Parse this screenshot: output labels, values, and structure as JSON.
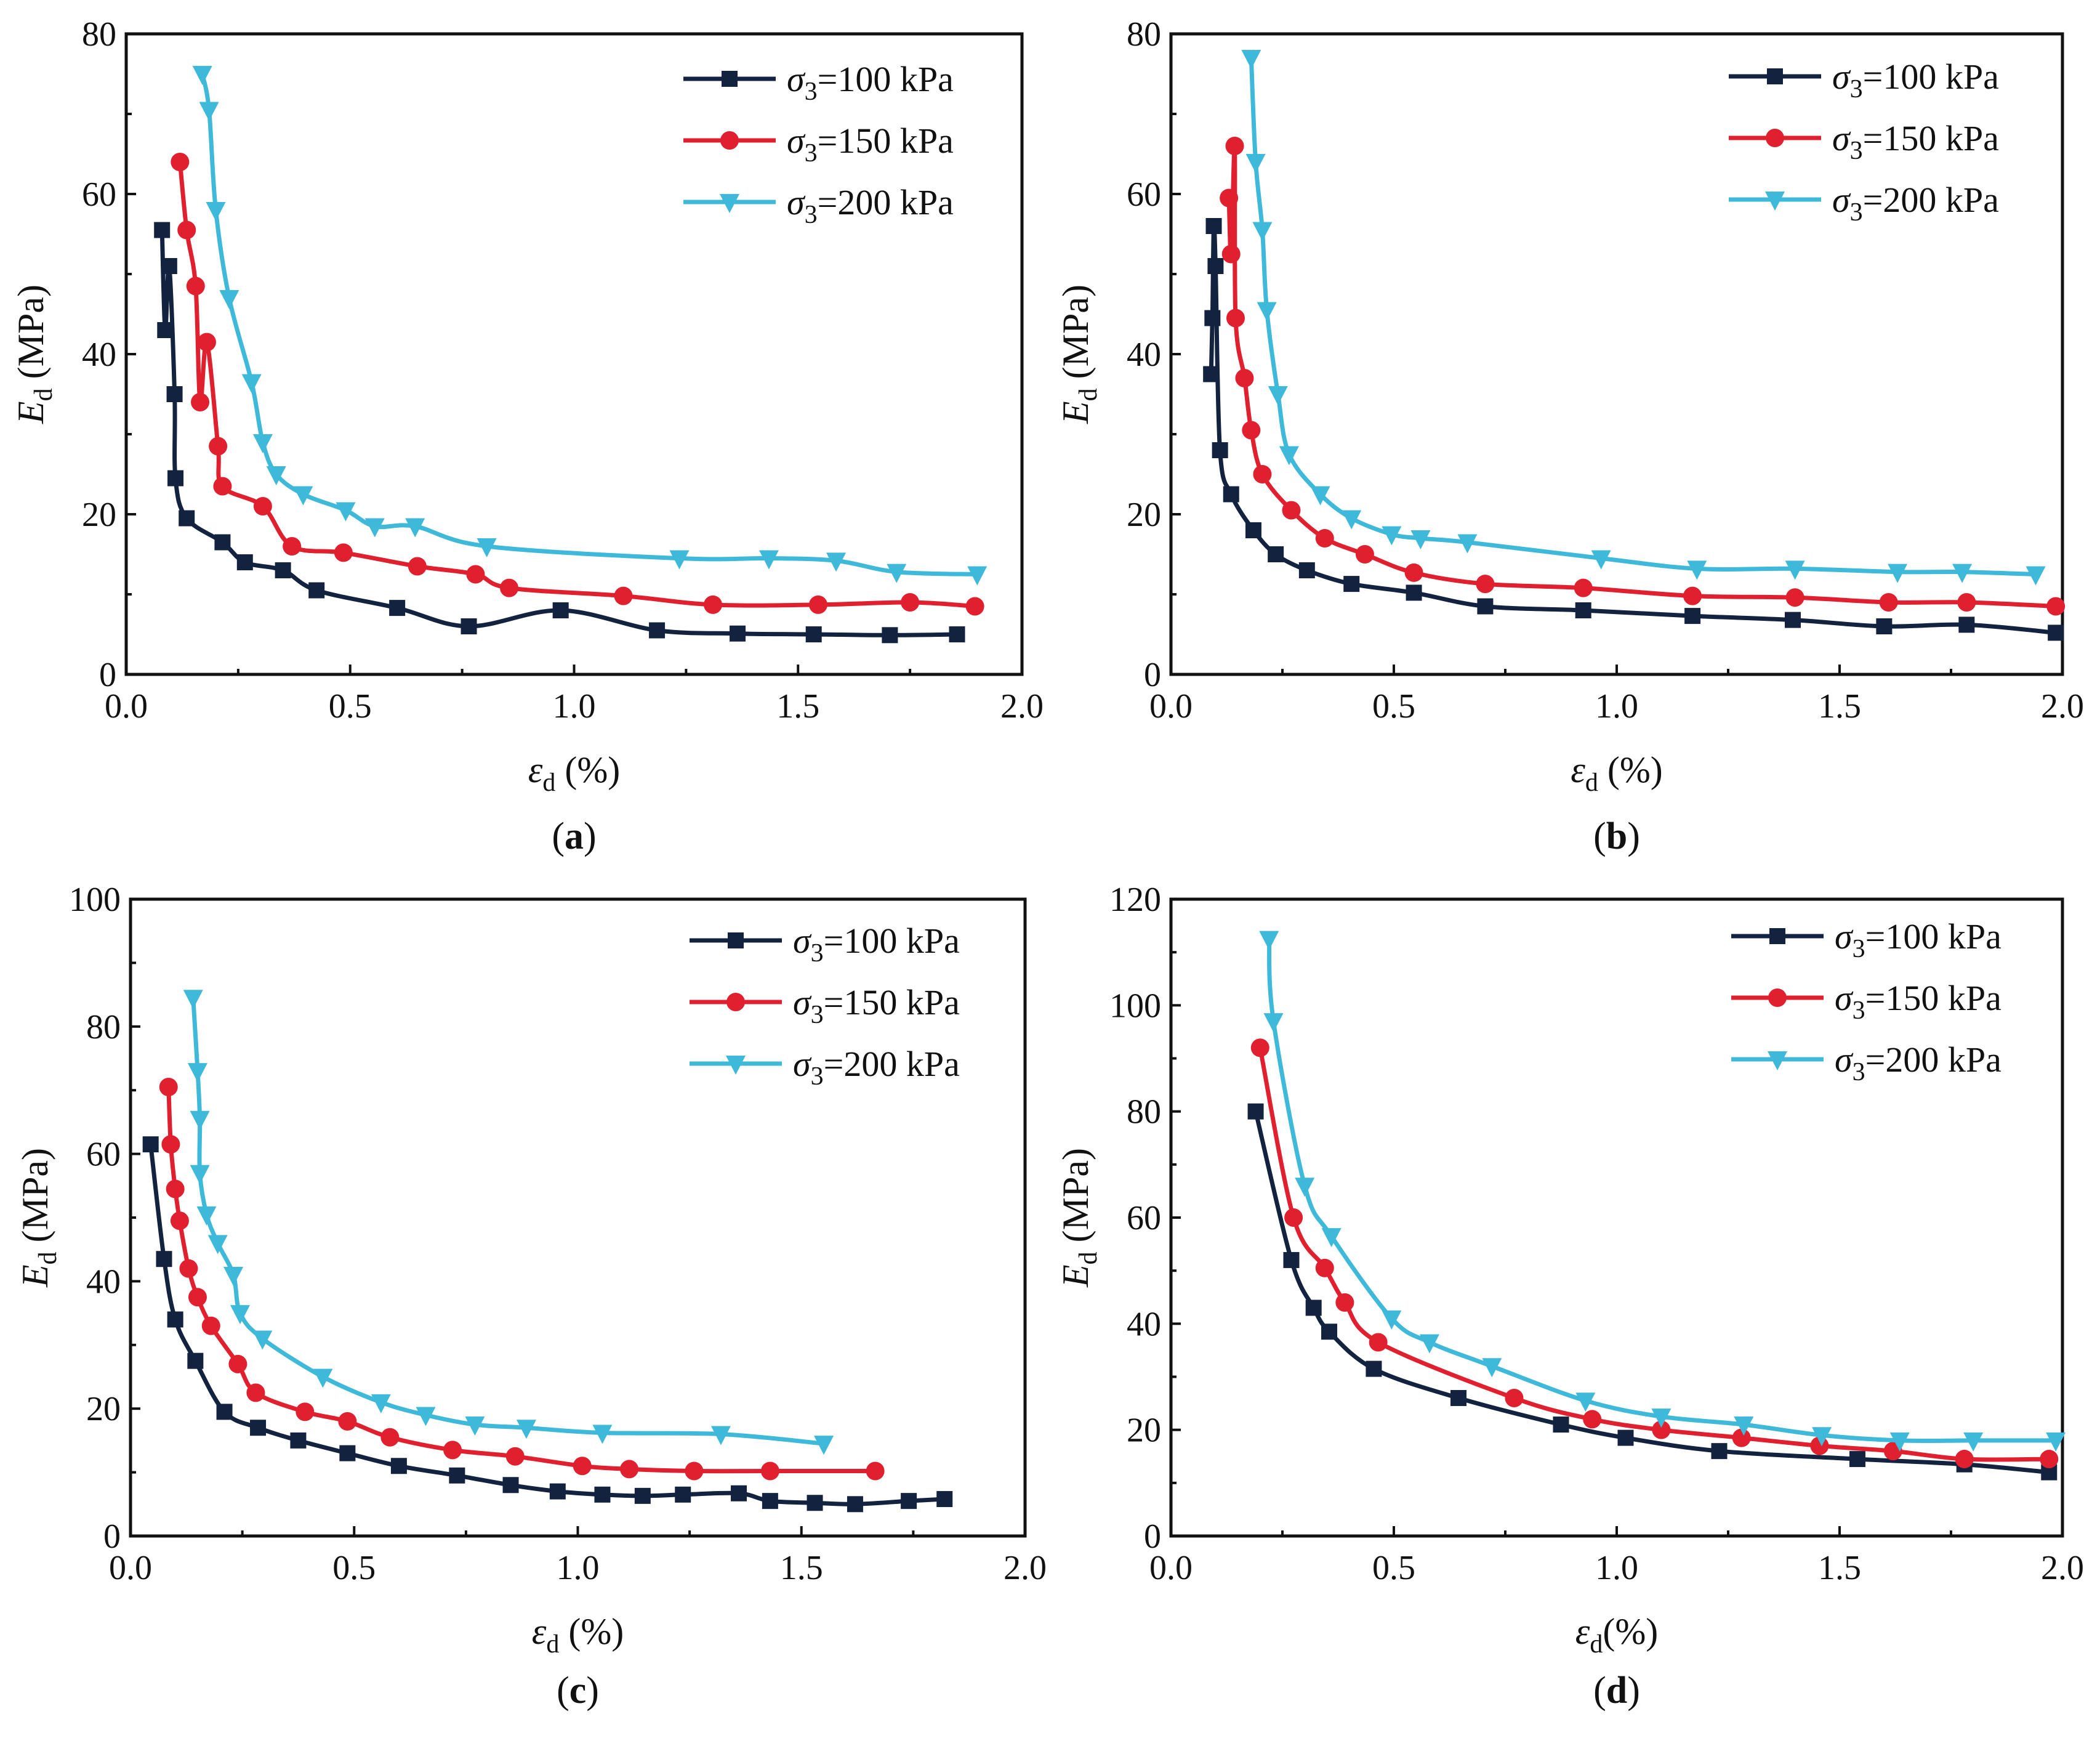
{
  "figure": {
    "panels": [
      "a",
      "b",
      "c",
      "d"
    ]
  },
  "colors": {
    "s100": "#13233f",
    "s150": "#e0202f",
    "s200": "#3fb9d9"
  },
  "chart_data": [
    {
      "panel": "a",
      "panel_label": "a",
      "type": "line",
      "xlabel": "ε",
      "xlabel_sub": "d",
      "xlabel_unit": " (%)",
      "ylabel": "E",
      "ylabel_sub": "d",
      "ylabel_unit": " (MPa)",
      "xlim": [
        0,
        2.0
      ],
      "ylim": [
        0,
        80
      ],
      "xticks": [
        "0.0",
        "0.5",
        "1.0",
        "1.5",
        "2.0"
      ],
      "yticks": [
        "0",
        "20",
        "40",
        "60",
        "80"
      ],
      "legend_position": "top-right",
      "series": [
        {
          "name": "σ3=100 kPa",
          "sigma": "σ",
          "sub": "3",
          "rest": "=100 kPa",
          "marker": "square",
          "color_key": "s100",
          "x": [
            0.08,
            0.087,
            0.096,
            0.108,
            0.11,
            0.135,
            0.215,
            0.265,
            0.35,
            0.425,
            0.605,
            0.765,
            0.97,
            1.185,
            1.365,
            1.535,
            1.705,
            1.855
          ],
          "y": [
            55.5,
            43,
            51,
            35,
            24.5,
            19.5,
            16.5,
            14,
            13,
            10.5,
            8.3,
            6,
            8,
            5.5,
            5.1,
            5,
            4.9,
            5
          ]
        },
        {
          "name": "σ3=150 kPa",
          "sigma": "σ",
          "sub": "3",
          "rest": "=150 kPa",
          "marker": "circle",
          "color_key": "s150",
          "x": [
            0.12,
            0.135,
            0.155,
            0.165,
            0.18,
            0.205,
            0.215,
            0.305,
            0.37,
            0.485,
            0.65,
            0.78,
            0.855,
            1.11,
            1.31,
            1.545,
            1.75,
            1.895
          ],
          "y": [
            64,
            55.5,
            48.5,
            34,
            41.5,
            28.5,
            23.5,
            21,
            16,
            15.2,
            13.5,
            12.5,
            10.8,
            9.8,
            8.7,
            8.7,
            9,
            8.5
          ]
        },
        {
          "name": "σ3=200 kPa",
          "sigma": "σ",
          "sub": "3",
          "rest": "=200 kPa",
          "marker": "triangle",
          "color_key": "s200",
          "x": [
            0.17,
            0.185,
            0.2,
            0.23,
            0.28,
            0.305,
            0.335,
            0.395,
            0.49,
            0.555,
            0.645,
            0.805,
            1.235,
            1.435,
            1.585,
            1.72,
            1.9
          ],
          "y": [
            75,
            70.5,
            58,
            47,
            36.5,
            29,
            25,
            22.5,
            20.5,
            18.5,
            18.5,
            16,
            14.5,
            14.5,
            14.2,
            12.8,
            12.5
          ]
        }
      ]
    },
    {
      "panel": "b",
      "panel_label": "b",
      "type": "line",
      "xlabel": "ε",
      "xlabel_sub": "d",
      "xlabel_unit": " (%)",
      "ylabel": "E",
      "ylabel_sub": "d",
      "ylabel_unit": " (MPa)",
      "xlim": [
        0,
        2.0
      ],
      "ylim": [
        0,
        80
      ],
      "xticks": [
        "0.0",
        "0.5",
        "1.0",
        "1.5",
        "2.0"
      ],
      "yticks": [
        "0",
        "20",
        "40",
        "60",
        "80"
      ],
      "legend_position": "top-right",
      "series": [
        {
          "name": "σ3=100 kPa",
          "sigma": "σ",
          "sub": "3",
          "rest": "=100 kPa",
          "marker": "square",
          "color_key": "s100",
          "x": [
            0.09,
            0.093,
            0.096,
            0.1,
            0.11,
            0.135,
            0.185,
            0.235,
            0.305,
            0.405,
            0.545,
            0.705,
            0.925,
            1.17,
            1.395,
            1.6,
            1.785,
            1.985
          ],
          "y": [
            37.5,
            44.5,
            56,
            51,
            28,
            22.5,
            18,
            15,
            13,
            11.3,
            10.2,
            8.5,
            8,
            7.3,
            6.8,
            6,
            6.2,
            5.2
          ]
        },
        {
          "name": "σ3=150 kPa",
          "sigma": "σ",
          "sub": "3",
          "rest": "=150 kPa",
          "marker": "circle",
          "color_key": "s150",
          "x": [
            0.13,
            0.135,
            0.143,
            0.145,
            0.165,
            0.18,
            0.205,
            0.27,
            0.345,
            0.435,
            0.545,
            0.705,
            0.925,
            1.17,
            1.4,
            1.61,
            1.785,
            1.985
          ],
          "y": [
            59.5,
            52.5,
            66,
            44.5,
            37,
            30.5,
            25,
            20.5,
            17,
            15,
            12.7,
            11.3,
            10.8,
            9.8,
            9.6,
            9,
            9,
            8.5
          ]
        },
        {
          "name": "σ3=200 kPa",
          "sigma": "σ",
          "sub": "3",
          "rest": "=200 kPa",
          "marker": "triangle",
          "color_key": "s200",
          "x": [
            0.18,
            0.19,
            0.205,
            0.215,
            0.24,
            0.265,
            0.335,
            0.405,
            0.495,
            0.56,
            0.665,
            0.965,
            1.18,
            1.4,
            1.63,
            1.775,
            1.94
          ],
          "y": [
            77,
            64,
            55.5,
            45.5,
            35,
            27.5,
            22.5,
            19.5,
            17.5,
            17,
            16.5,
            14.5,
            13.2,
            13.2,
            12.8,
            12.8,
            12.5
          ]
        }
      ]
    },
    {
      "panel": "c",
      "panel_label": "c",
      "type": "line",
      "xlabel": "ε",
      "xlabel_sub": "d",
      "xlabel_unit": " (%)",
      "ylabel": "E",
      "ylabel_sub": "d",
      "ylabel_unit": " (MPa)",
      "xlim": [
        0,
        2.0
      ],
      "ylim": [
        0,
        100
      ],
      "xticks": [
        "0.0",
        "0.5",
        "1.0",
        "1.5",
        "2.0"
      ],
      "yticks": [
        "0",
        "20",
        "40",
        "60",
        "80",
        "100"
      ],
      "legend_position": "top-right",
      "series": [
        {
          "name": "σ3=100 kPa",
          "sigma": "σ",
          "sub": "3",
          "rest": "=100 kPa",
          "marker": "square",
          "color_key": "s100",
          "x": [
            0.045,
            0.075,
            0.1,
            0.145,
            0.21,
            0.285,
            0.375,
            0.485,
            0.6,
            0.73,
            0.85,
            0.955,
            1.055,
            1.145,
            1.235,
            1.36,
            1.43,
            1.53,
            1.62,
            1.74,
            1.82
          ],
          "y": [
            61.5,
            43.5,
            34,
            27.5,
            19.5,
            17,
            15,
            13,
            11,
            9.5,
            8,
            7,
            6.5,
            6.3,
            6.5,
            6.7,
            5.5,
            5.2,
            5,
            5.5,
            5.8
          ]
        },
        {
          "name": "σ3=150 kPa",
          "sigma": "σ",
          "sub": "3",
          "rest": "=150 kPa",
          "marker": "circle",
          "color_key": "s150",
          "x": [
            0.085,
            0.09,
            0.1,
            0.11,
            0.13,
            0.15,
            0.18,
            0.24,
            0.28,
            0.39,
            0.485,
            0.58,
            0.72,
            0.86,
            1.01,
            1.115,
            1.26,
            1.43,
            1.665
          ],
          "y": [
            70.5,
            61.5,
            54.5,
            49.5,
            42,
            37.5,
            33,
            27,
            22.5,
            19.5,
            18,
            15.5,
            13.5,
            12.5,
            11,
            10.5,
            10.2,
            10.2,
            10.2
          ]
        },
        {
          "name": "σ3=200 kPa",
          "sigma": "σ",
          "sub": "3",
          "rest": "=200 kPa",
          "marker": "triangle",
          "color_key": "s200",
          "x": [
            0.14,
            0.15,
            0.155,
            0.155,
            0.17,
            0.195,
            0.23,
            0.245,
            0.295,
            0.43,
            0.56,
            0.66,
            0.77,
            0.885,
            1.055,
            1.32,
            1.55
          ],
          "y": [
            84.5,
            73,
            65.5,
            57,
            50.5,
            46,
            41,
            35,
            31,
            25,
            21,
            19,
            17.5,
            17,
            16.2,
            16,
            14.5
          ]
        }
      ]
    },
    {
      "panel": "d",
      "panel_label": "d",
      "type": "line",
      "xlabel": "ε",
      "xlabel_sub": "d",
      "xlabel_unit": "(%)",
      "ylabel": "E",
      "ylabel_sub": "d",
      "ylabel_unit": " (MPa)",
      "xlim": [
        0,
        2.0
      ],
      "ylim": [
        0,
        120
      ],
      "xticks": [
        "0.0",
        "0.5",
        "1.0",
        "1.5",
        "2.0"
      ],
      "yticks": [
        "0",
        "20",
        "40",
        "60",
        "80",
        "100",
        "120"
      ],
      "legend_position": "top-right",
      "series": [
        {
          "name": "σ3=100 kPa",
          "sigma": "σ",
          "sub": "3",
          "rest": "=100 kPa",
          "marker": "square",
          "color_key": "s100",
          "x": [
            0.19,
            0.27,
            0.32,
            0.355,
            0.455,
            0.645,
            0.875,
            1.02,
            1.23,
            1.54,
            1.78,
            1.97
          ],
          "y": [
            80,
            52,
            43,
            38.5,
            31.5,
            26,
            21,
            18.5,
            16,
            14.5,
            13.5,
            12
          ]
        },
        {
          "name": "σ3=150 kPa",
          "sigma": "σ",
          "sub": "3",
          "rest": "=150 kPa",
          "marker": "circle",
          "color_key": "s150",
          "x": [
            0.2,
            0.275,
            0.345,
            0.39,
            0.465,
            0.77,
            0.945,
            1.1,
            1.28,
            1.455,
            1.62,
            1.78,
            1.97
          ],
          "y": [
            92,
            60,
            50.5,
            44,
            36.5,
            26,
            22,
            20,
            18.5,
            17,
            16,
            14.5,
            14.5
          ]
        },
        {
          "name": "σ3=200 kPa",
          "sigma": "σ",
          "sub": "3",
          "rest": "=200 kPa",
          "marker": "triangle",
          "color_key": "s200",
          "x": [
            0.22,
            0.23,
            0.3,
            0.36,
            0.495,
            0.58,
            0.72,
            0.93,
            1.1,
            1.285,
            1.46,
            1.635,
            1.8,
            1.985
          ],
          "y": [
            112.5,
            97,
            66,
            56.5,
            41,
            36.5,
            32,
            25.5,
            22.5,
            21,
            19,
            18,
            18,
            18
          ]
        }
      ]
    }
  ]
}
